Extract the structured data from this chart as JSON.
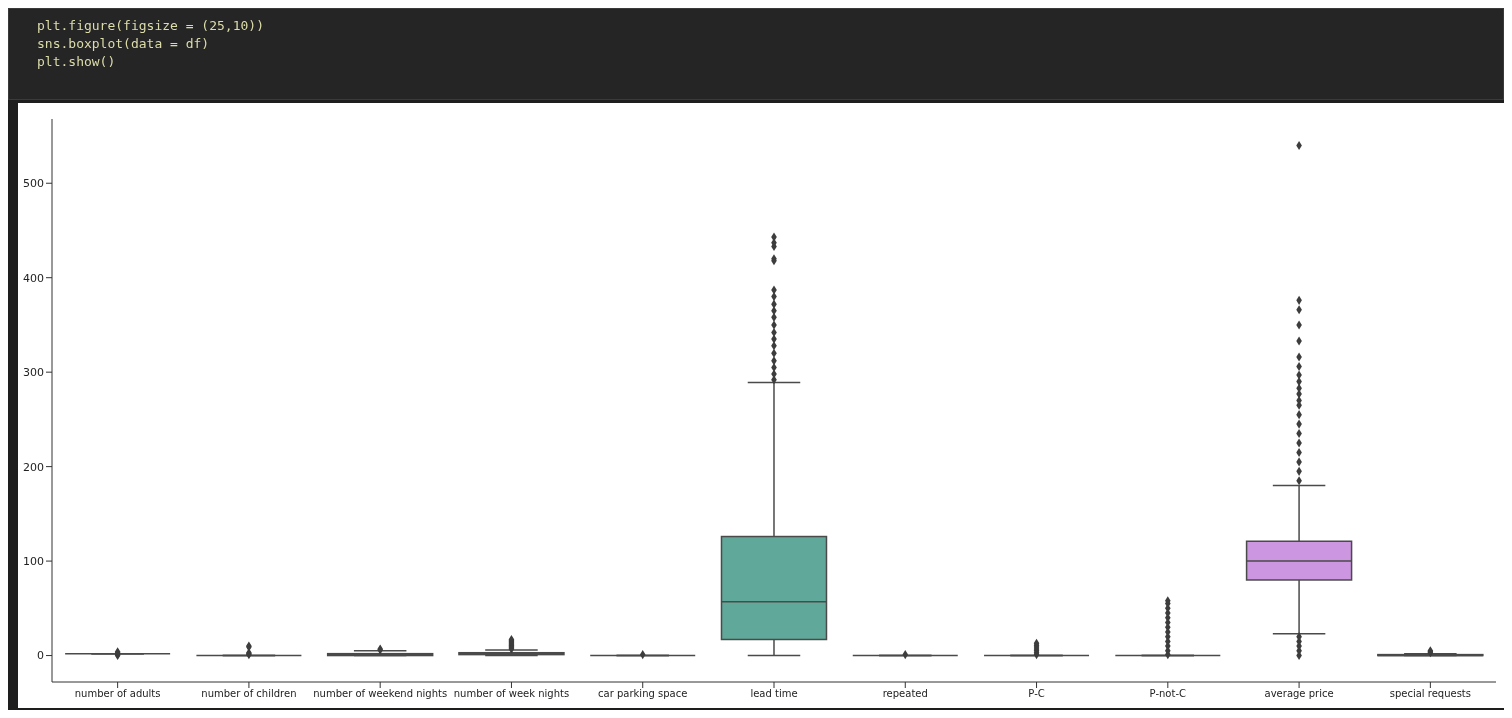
{
  "chart_data": {
    "type": "box",
    "annotations": [
      "plt.figure(figsize = (25,10))",
      "sns.boxplot(data = df)",
      "plt.show()"
    ],
    "categories": [
      "number of adults",
      "number of children",
      "number of weekend nights",
      "number of week nights",
      "car parking space",
      "lead time",
      "repeated",
      "P-C",
      "P-not-C",
      "average price",
      "special requests"
    ],
    "boxes": [
      {
        "low": 2,
        "q1": 2,
        "median": 2,
        "q3": 2,
        "high": 2,
        "outliers": [
          0,
          1,
          3,
          4
        ]
      },
      {
        "low": 0,
        "q1": 0,
        "median": 0,
        "q3": 0,
        "high": 0,
        "outliers": [
          1,
          2,
          3,
          9,
          10
        ]
      },
      {
        "low": 0,
        "q1": 0,
        "median": 1,
        "q3": 2,
        "high": 5,
        "outliers": [
          6,
          7
        ]
      },
      {
        "low": 0,
        "q1": 1,
        "median": 2,
        "q3": 3,
        "high": 6,
        "outliers": [
          7,
          8,
          9,
          10,
          11,
          12,
          13,
          14,
          15,
          16,
          17
        ]
      },
      {
        "low": 0,
        "q1": 0,
        "median": 0,
        "q3": 0,
        "high": 0,
        "outliers": [
          1
        ]
      },
      {
        "low": 0,
        "q1": 17,
        "median": 57,
        "q3": 126,
        "high": 289,
        "outliers": [
          292,
          298,
          305,
          312,
          320,
          328,
          335,
          342,
          350,
          358,
          365,
          372,
          380,
          387,
          418,
          420,
          433,
          437,
          443
        ]
      },
      {
        "low": 0,
        "q1": 0,
        "median": 0,
        "q3": 0,
        "high": 0,
        "outliers": [
          1
        ]
      },
      {
        "low": 0,
        "q1": 0,
        "median": 0,
        "q3": 0,
        "high": 0,
        "outliers": [
          1,
          3,
          5,
          7,
          9,
          11,
          13
        ]
      },
      {
        "low": 0,
        "q1": 0,
        "median": 0,
        "q3": 0,
        "high": 0,
        "outliers": [
          1,
          5,
          10,
          15,
          20,
          25,
          30,
          35,
          40,
          45,
          50,
          55,
          58
        ]
      },
      {
        "low": 23,
        "q1": 80,
        "median": 100,
        "q3": 121,
        "high": 180,
        "outliers": [
          0,
          5,
          10,
          15,
          20,
          185,
          195,
          205,
          215,
          225,
          235,
          245,
          255,
          265,
          270,
          277,
          283,
          290,
          297,
          306,
          316,
          333,
          350,
          366,
          376,
          540
        ]
      },
      {
        "low": 0,
        "q1": 0,
        "median": 0,
        "q3": 1,
        "high": 2,
        "outliers": [
          3,
          4,
          5
        ]
      }
    ],
    "colors": [
      null,
      null,
      null,
      null,
      null,
      "#60a899",
      null,
      null,
      null,
      "#cc96e0",
      null
    ],
    "ylim": [
      -28,
      568
    ],
    "yticks": [
      0,
      100,
      200,
      300,
      400,
      500
    ],
    "marker": "diamond"
  }
}
